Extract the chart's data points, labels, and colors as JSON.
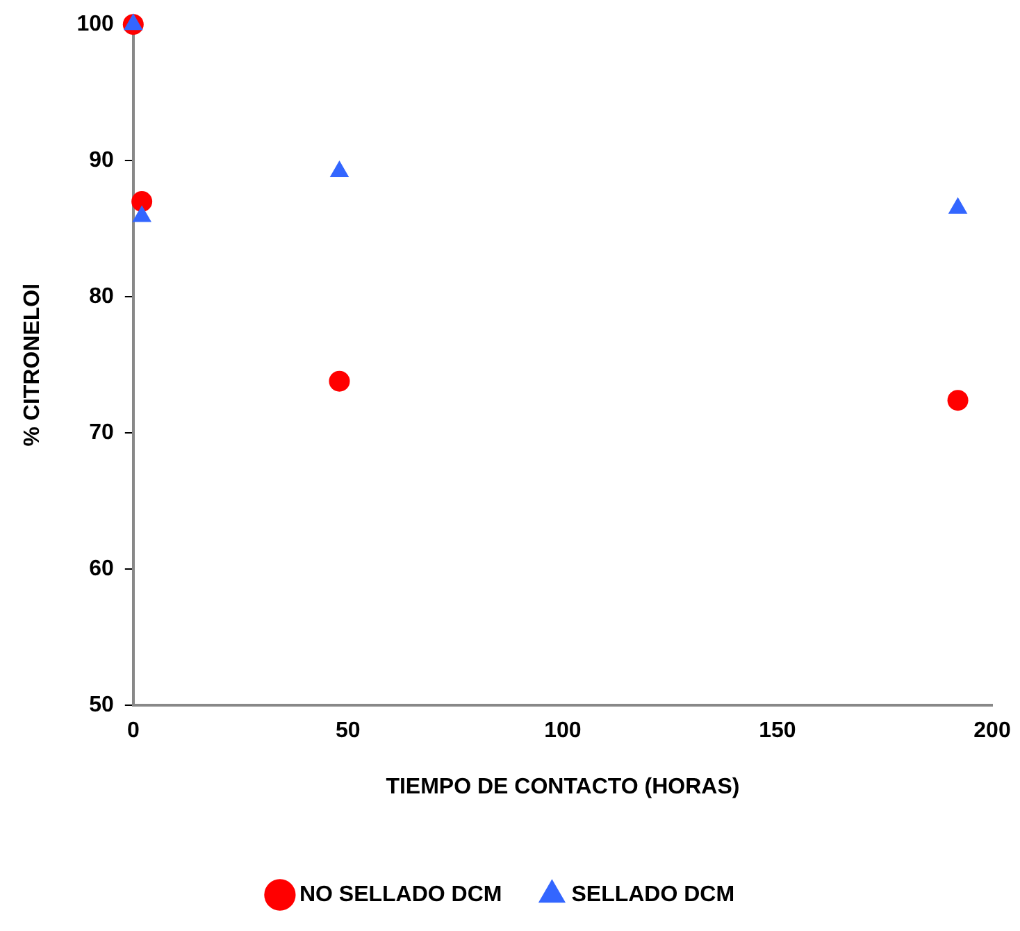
{
  "chart_data": {
    "type": "scatter",
    "xlabel": "TIEMPO DE CONTACTO (HORAS)",
    "ylabel": "% CITRONELOl",
    "xlim": [
      0,
      200
    ],
    "xticks": [
      0,
      50,
      100,
      150,
      200
    ],
    "ylim": [
      50,
      100
    ],
    "yticks": [
      50,
      60,
      70,
      80,
      90,
      100
    ],
    "grid": false,
    "legend": "bottom",
    "series": [
      {
        "name": "NO SELLADO DCM",
        "color": "#ff0000",
        "marker": "circle",
        "x": [
          0,
          2,
          48,
          192
        ],
        "values": [
          100,
          87.0,
          73.8,
          72.4
        ]
      },
      {
        "name": "SELLADO DCM",
        "color": "#3366ff",
        "marker": "triangle",
        "x": [
          0,
          2,
          48,
          192
        ],
        "values": [
          100,
          85.9,
          89.2,
          86.5
        ]
      }
    ]
  }
}
